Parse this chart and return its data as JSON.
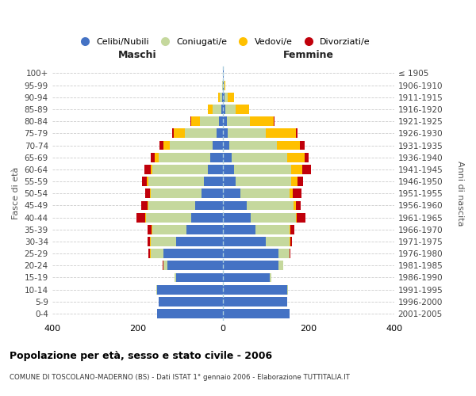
{
  "age_groups": [
    "0-4",
    "5-9",
    "10-14",
    "15-19",
    "20-24",
    "25-29",
    "30-34",
    "35-39",
    "40-44",
    "45-49",
    "50-54",
    "55-59",
    "60-64",
    "65-69",
    "70-74",
    "75-79",
    "80-84",
    "85-89",
    "90-94",
    "95-99",
    "100+"
  ],
  "birth_years": [
    "2001-2005",
    "1996-2000",
    "1991-1995",
    "1986-1990",
    "1981-1985",
    "1976-1980",
    "1971-1975",
    "1966-1970",
    "1961-1965",
    "1956-1960",
    "1951-1955",
    "1946-1950",
    "1941-1945",
    "1936-1940",
    "1931-1935",
    "1926-1930",
    "1921-1925",
    "1916-1920",
    "1911-1915",
    "1906-1910",
    "≤ 1905"
  ],
  "maschi": {
    "celibi": [
      155,
      150,
      155,
      110,
      130,
      140,
      110,
      85,
      75,
      65,
      50,
      45,
      35,
      30,
      25,
      15,
      10,
      5,
      2,
      1,
      1
    ],
    "coniugati": [
      0,
      0,
      2,
      3,
      10,
      30,
      60,
      80,
      105,
      110,
      120,
      130,
      130,
      120,
      100,
      75,
      45,
      20,
      5,
      1,
      0
    ],
    "vedovi": [
      0,
      0,
      0,
      0,
      0,
      2,
      2,
      2,
      2,
      2,
      2,
      3,
      5,
      10,
      15,
      25,
      20,
      10,
      5,
      1,
      0
    ],
    "divorziati": [
      0,
      0,
      0,
      0,
      1,
      2,
      5,
      10,
      20,
      15,
      10,
      12,
      15,
      10,
      8,
      5,
      2,
      1,
      0,
      0,
      0
    ]
  },
  "femmine": {
    "nubili": [
      155,
      150,
      150,
      110,
      130,
      130,
      100,
      75,
      65,
      55,
      40,
      30,
      25,
      20,
      15,
      10,
      8,
      5,
      3,
      2,
      1
    ],
    "coniugate": [
      0,
      0,
      1,
      2,
      10,
      25,
      55,
      80,
      105,
      110,
      115,
      130,
      135,
      130,
      110,
      90,
      55,
      25,
      8,
      1,
      0
    ],
    "vedove": [
      0,
      0,
      0,
      0,
      0,
      1,
      2,
      2,
      3,
      5,
      8,
      15,
      25,
      40,
      55,
      70,
      55,
      30,
      15,
      3,
      1
    ],
    "divorziate": [
      0,
      0,
      0,
      0,
      1,
      2,
      5,
      10,
      20,
      12,
      20,
      12,
      20,
      10,
      10,
      5,
      2,
      1,
      0,
      0,
      0
    ]
  },
  "colors": {
    "celibi_nubili": "#4472c4",
    "coniugati_e": "#c5d89d",
    "vedovi_e": "#ffc000",
    "divorziati_e": "#c0000b"
  },
  "xlim": 400,
  "title": "Popolazione per età, sesso e stato civile - 2006",
  "subtitle": "COMUNE DI TOSCOLANO-MADERNO (BS) - Dati ISTAT 1° gennaio 2006 - Elaborazione TUTTITALIA.IT",
  "ylabel_left": "Fasce di età",
  "ylabel_right": "Anni di nascita",
  "xlabel_maschi": "Maschi",
  "xlabel_femmine": "Femmine"
}
